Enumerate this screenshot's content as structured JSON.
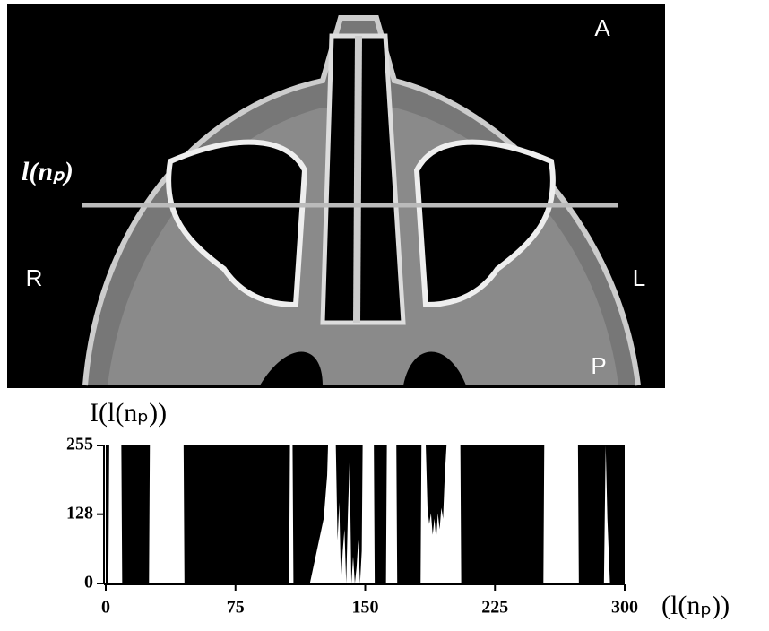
{
  "image": {
    "labels": {
      "anterior": "A",
      "right": "R",
      "left": "L",
      "posterior": "P",
      "line": "l(nₚ)"
    }
  },
  "chart_data": {
    "type": "area",
    "y_label": "I(l(nₚ))",
    "x_label": "(l(nₚ))",
    "x": [
      0,
      1.5,
      2,
      9,
      9.5,
      25,
      25.5,
      45,
      45.5,
      106,
      106.5,
      108,
      108.5,
      118,
      122,
      126,
      128,
      128.5,
      133,
      134,
      135,
      136,
      137,
      138,
      139,
      140,
      141,
      142,
      143,
      144,
      145,
      146,
      147,
      148,
      148.5,
      155,
      155.5,
      162,
      162.5,
      168,
      168.5,
      182,
      182.5,
      185,
      186,
      187,
      188,
      189,
      190,
      191,
      192,
      193,
      194,
      195,
      196,
      197,
      205,
      205.5,
      253,
      253.5,
      273,
      273.5,
      288,
      289,
      290,
      291,
      291.5,
      300
    ],
    "values": [
      0,
      0,
      255,
      255,
      0,
      0,
      255,
      255,
      0,
      0,
      255,
      255,
      0,
      0,
      60,
      120,
      200,
      255,
      255,
      80,
      150,
      0,
      60,
      100,
      0,
      130,
      230,
      0,
      50,
      0,
      30,
      80,
      0,
      60,
      255,
      255,
      0,
      0,
      255,
      255,
      0,
      0,
      255,
      255,
      140,
      110,
      130,
      90,
      120,
      80,
      130,
      100,
      140,
      120,
      200,
      255,
      255,
      0,
      0,
      255,
      255,
      0,
      0,
      255,
      120,
      40,
      0,
      0
    ],
    "color": "#ffffff",
    "background": "#000000",
    "xlim": [
      0,
      300
    ],
    "xticks": [
      0,
      75,
      150,
      225,
      300
    ],
    "ylim": [
      0,
      255
    ],
    "yticks": [
      0,
      128,
      255
    ]
  }
}
